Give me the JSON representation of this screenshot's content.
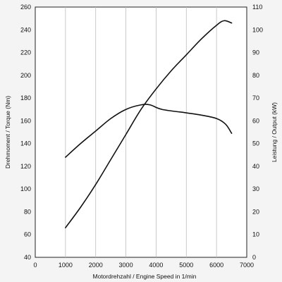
{
  "chart_data": {
    "type": "line",
    "title": "",
    "xlabel": "Motordrehzahl / Engine Speed in 1/min",
    "ylabel_left": "Drehmoment / Torque (Nm)",
    "ylabel_right": "Leistung / Output (kW)",
    "xlim": [
      0,
      7000
    ],
    "ylim_left": [
      40,
      260
    ],
    "ylim_right": [
      0,
      110
    ],
    "x_ticks": [
      0,
      1000,
      2000,
      3000,
      4000,
      5000,
      6000,
      7000
    ],
    "y_left_ticks": [
      40,
      60,
      80,
      100,
      120,
      140,
      160,
      180,
      200,
      220,
      240,
      260
    ],
    "y_right_ticks": [
      0,
      10,
      20,
      30,
      40,
      50,
      60,
      70,
      80,
      90,
      100,
      110
    ],
    "grid": "vertical",
    "legend": "none",
    "series": [
      {
        "axis": "left",
        "points": [
          [
            1000,
            128
          ],
          [
            1500,
            140
          ],
          [
            2000,
            151
          ],
          [
            2500,
            162
          ],
          [
            3000,
            170
          ],
          [
            3500,
            174
          ],
          [
            3800,
            174
          ],
          [
            4200,
            170
          ],
          [
            5000,
            167
          ],
          [
            5500,
            165
          ],
          [
            6000,
            162
          ],
          [
            6300,
            157
          ],
          [
            6500,
            149
          ]
        ]
      },
      {
        "axis": "right",
        "points": [
          [
            1000,
            13
          ],
          [
            1500,
            22
          ],
          [
            2000,
            32
          ],
          [
            2500,
            43
          ],
          [
            3000,
            54
          ],
          [
            3500,
            65
          ],
          [
            4000,
            74
          ],
          [
            4500,
            82
          ],
          [
            5000,
            89
          ],
          [
            5500,
            96
          ],
          [
            6000,
            102
          ],
          [
            6250,
            104
          ],
          [
            6500,
            103
          ]
        ]
      }
    ]
  }
}
